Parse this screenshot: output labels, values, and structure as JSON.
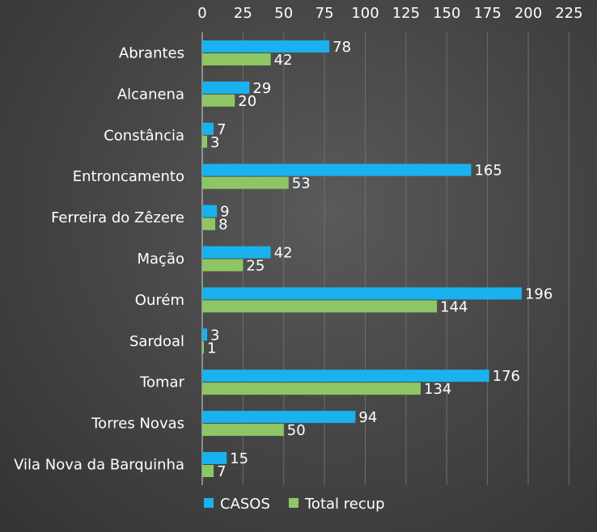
{
  "chart_data": {
    "type": "bar",
    "orientation": "horizontal",
    "categories": [
      "Abrantes",
      "Alcanena",
      "Constância",
      "Entroncamento",
      "Ferreira do Zêzere",
      "Mação",
      "Ourém",
      "Sardoal",
      "Tomar",
      "Torres Novas",
      "Vila Nova da Barquinha"
    ],
    "series": [
      {
        "name": "CASOS",
        "color": "#19b2ee",
        "values": [
          78,
          29,
          7,
          165,
          9,
          42,
          196,
          3,
          176,
          94,
          15
        ]
      },
      {
        "name": "Total recup",
        "color": "#8ec665",
        "values": [
          42,
          20,
          3,
          53,
          8,
          25,
          144,
          1,
          134,
          50,
          7
        ]
      }
    ],
    "x_ticks": [
      0,
      25,
      50,
      75,
      100,
      125,
      150,
      175,
      200,
      225
    ],
    "xlim": [
      0,
      225
    ],
    "x_axis_position": "top",
    "grid": true,
    "data_labels": true,
    "legend_position": "bottom",
    "background": "#474747",
    "title": "",
    "xlabel": "",
    "ylabel": ""
  }
}
